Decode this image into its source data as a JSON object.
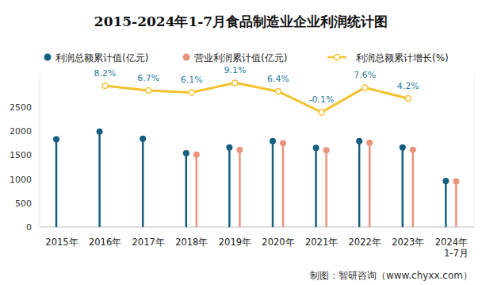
{
  "chart_data": {
    "type": "combo",
    "title": "2015-2024年1-7月食品制造业企业利润统计图",
    "footer": "制图：智研咨询（www.chyxx.com）",
    "categories": [
      "2015年",
      "2016年",
      "2017年",
      "2018年",
      "2019年",
      "2020年",
      "2021年",
      "2022年",
      "2023年",
      "2024年1-7月"
    ],
    "ylim": [
      0,
      3200
    ],
    "yticks": [
      0,
      500,
      1000,
      1500,
      2000,
      2500
    ],
    "y2lim": [
      -36,
      12
    ],
    "tick_labels": "y",
    "grid": false,
    "legend": "top",
    "series": [
      {
        "name": "利润总额累计值(亿元)",
        "type": "lollipop",
        "marker": "circle",
        "color": "#145f7f",
        "values": [
          1830,
          1990,
          1840,
          1540,
          1660,
          1790,
          1650,
          1790,
          1660,
          960
        ]
      },
      {
        "name": "营业利润累计值(亿元)",
        "type": "lollipop",
        "marker": "circle",
        "color": "#e9937c",
        "values": [
          null,
          null,
          null,
          1510,
          1610,
          1750,
          1600,
          1760,
          1610,
          950
        ]
      },
      {
        "name": "利润总额累计增长(%)",
        "type": "line",
        "marker": "circle",
        "color": "#f2c12e",
        "axis": "y2",
        "data_labels": true,
        "values": [
          null,
          8.2,
          6.7,
          6.1,
          9.1,
          6.4,
          -0.1,
          7.6,
          4.2,
          null
        ],
        "value_labels": [
          null,
          "8.2%",
          "6.7%",
          "6.1%",
          "9.1%",
          "6.4%",
          "-0.1%",
          "7.6%",
          "4.2%",
          null
        ]
      }
    ]
  }
}
